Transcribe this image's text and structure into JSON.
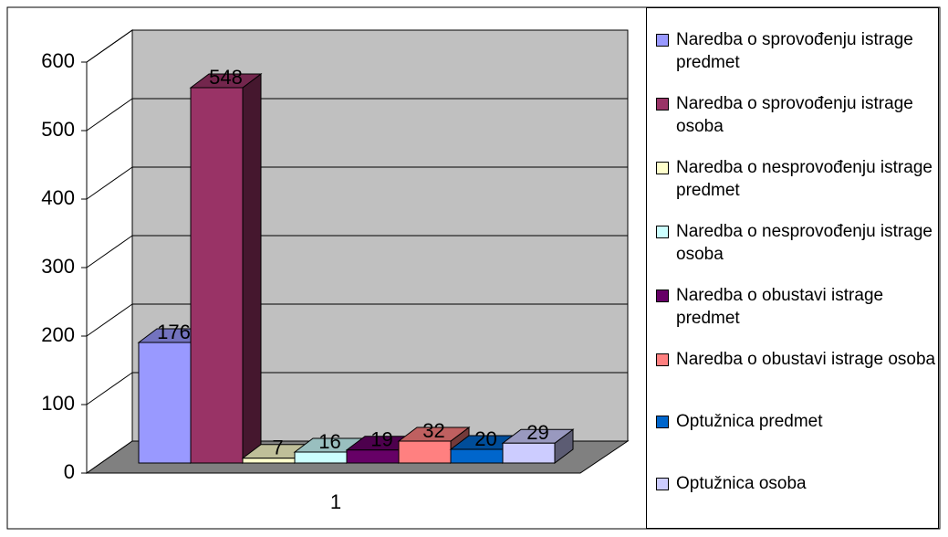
{
  "chart_data": {
    "type": "bar3d",
    "categories": [
      "1"
    ],
    "series": [
      {
        "name": "Naredba o sprovođenju istrage predmet",
        "color": "#9999ff",
        "values": [
          176
        ]
      },
      {
        "name": "Naredba o sprovođenju istrage osoba",
        "color": "#993366",
        "values": [
          548
        ]
      },
      {
        "name": "Naredba o nesprovođenju istrage predmet",
        "color": "#ffffcc",
        "values": [
          7
        ]
      },
      {
        "name": "Naredba o nesprovođenju istrage osoba",
        "color": "#ccffff",
        "values": [
          16
        ]
      },
      {
        "name": "Naredba o obustavi istrage predmet",
        "color": "#660066",
        "values": [
          19
        ]
      },
      {
        "name": "Naredba o obustavi istrage osoba",
        "color": "#ff8080",
        "values": [
          32
        ]
      },
      {
        "name": "Optužnica predmet",
        "color": "#0066cc",
        "values": [
          20
        ]
      },
      {
        "name": "Optužnica osoba",
        "color": "#ccccff",
        "values": [
          29
        ]
      }
    ],
    "ylim": [
      0,
      600
    ],
    "yticks": [
      0,
      100,
      200,
      300,
      400,
      500,
      600
    ],
    "grid": true,
    "legend": "right"
  }
}
